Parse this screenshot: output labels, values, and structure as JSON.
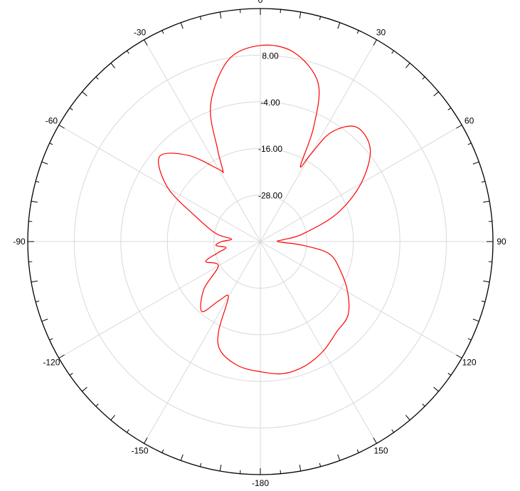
{
  "chart_data": {
    "type": "polar-line",
    "angle_ticks": [
      {
        "deg": 0,
        "label": "0"
      },
      {
        "deg": 30,
        "label": "30"
      },
      {
        "deg": 60,
        "label": "60"
      },
      {
        "deg": 90,
        "label": "90"
      },
      {
        "deg": 120,
        "label": "120"
      },
      {
        "deg": 150,
        "label": "150"
      },
      {
        "deg": 180,
        "label": "-180"
      },
      {
        "deg": -150,
        "label": "-150"
      },
      {
        "deg": -120,
        "label": "-120"
      },
      {
        "deg": -90,
        "label": "-90"
      },
      {
        "deg": -60,
        "label": "-60"
      },
      {
        "deg": -30,
        "label": "-30"
      }
    ],
    "ring_labels": [
      "8.00",
      "-4.00",
      "-16.00",
      "-28.00"
    ],
    "ring_values": [
      8,
      -4,
      -16,
      -28
    ],
    "r_min": -40,
    "r_max": 20,
    "series_color": "#ff0000",
    "grid_color": "#d9d9d9",
    "series": [
      {
        "angles": [
          0,
          10,
          20,
          25,
          28,
          30,
          33,
          40,
          50,
          60,
          70,
          80,
          85,
          88,
          90,
          92,
          95,
          100,
          110,
          120,
          130,
          140,
          150,
          160,
          170,
          180,
          190,
          200,
          205,
          210,
          215,
          220,
          230,
          240,
          250,
          255,
          260,
          265,
          270,
          275,
          280,
          290,
          300,
          310,
          320,
          330,
          332,
          335,
          340,
          350,
          360
        ],
        "values": [
          10.5,
          9.5,
          3.5,
          -7.5,
          -18.0,
          -14.0,
          -6.5,
          -1.5,
          -3.0,
          -10.0,
          -19.0,
          -29.0,
          -34.0,
          -35.5,
          -35.5,
          -34.5,
          -29.0,
          -22.0,
          -18.0,
          -14.0,
          -10.5,
          -9.5,
          -7.5,
          -6.0,
          -5.5,
          -6.5,
          -7.5,
          -10.0,
          -14.5,
          -23.5,
          -21.5,
          -16.5,
          -21.0,
          -27.5,
          -25.0,
          -28.5,
          -31.0,
          -28.5,
          -30.0,
          -32.5,
          -28.5,
          -23.0,
          -12.5,
          -6.0,
          -11.0,
          -18.5,
          -19.5,
          -14.0,
          -2.5,
          7.5,
          10.5
        ]
      }
    ]
  }
}
